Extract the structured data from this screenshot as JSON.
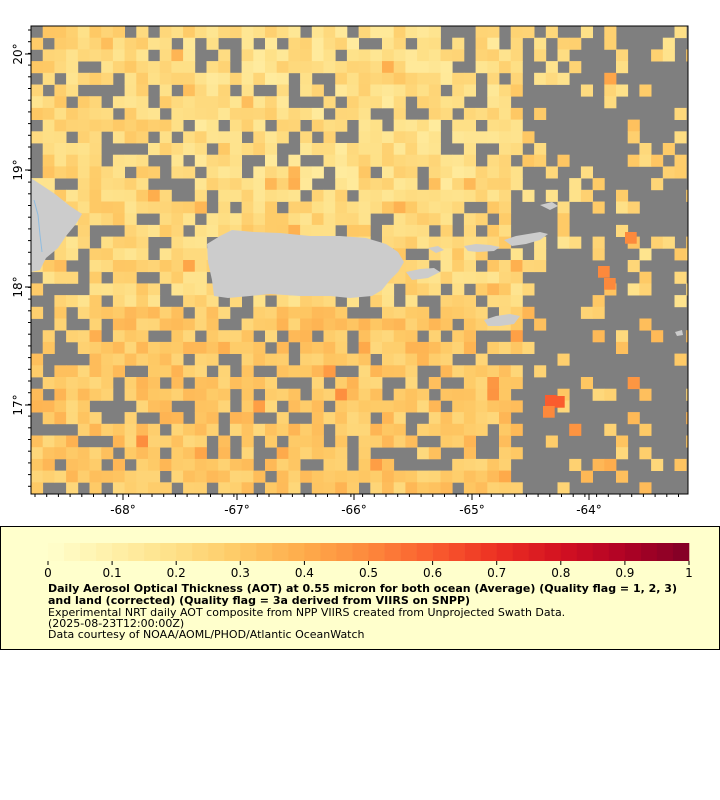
{
  "map": {
    "x_ticks": [
      "-68°",
      "-67°",
      "-66°",
      "-65°",
      "-64°"
    ],
    "y_ticks": [
      "20°",
      "19°",
      "18°",
      "17°"
    ],
    "lon_range": [
      -68.8,
      -63.2
    ],
    "lat_range": [
      16.3,
      20.3
    ],
    "colors": {
      "nodata": "#7f7f7f",
      "land": "#cccccc",
      "frame": "#000000"
    }
  },
  "legend": {
    "scale_min": 0,
    "scale_max": 1,
    "tick_labels": [
      "0",
      "0.1",
      "0.2",
      "0.3",
      "0.4",
      "0.5",
      "0.6",
      "0.7",
      "0.8",
      "0.9",
      "1"
    ],
    "colormap": [
      "#ffffcc",
      "#fff0a8",
      "#fee087",
      "#fec965",
      "#feab4b",
      "#fd893c",
      "#fa5c2e",
      "#ec3023",
      "#d31121",
      "#af0225",
      "#800026"
    ],
    "title": "Daily Aerosol Optical Thickness (AOT) at 0.55 micron for both ocean (Average) (Quality flag = 1, 2, 3) and land (corrected) (Quality flag = 3a derived from VIIRS on SNPP)",
    "line1": "Experimental NRT daily AOT composite from NPP VIIRS created from Unprojected Swath Data.",
    "line2": "(2025-08-23T12:00:00Z)",
    "line3": "Data courtesy of NOAA/AOML/PHOD/Atlantic OceanWatch"
  }
}
